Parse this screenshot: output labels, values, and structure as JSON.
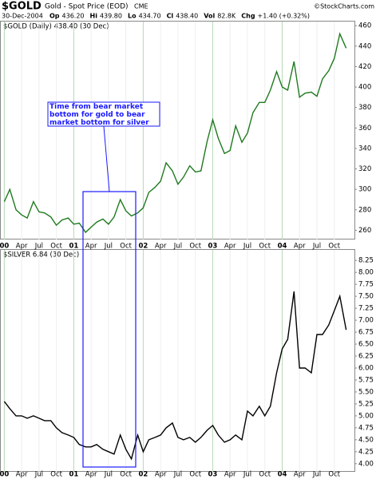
{
  "header": {
    "symbol": "$GOLD",
    "name": "Gold - Spot Price (EOD)",
    "exchange": "CME",
    "copyright": "©StockCharts.com",
    "date": "30-Dec-2004",
    "stats": [
      [
        "Op",
        "436.20"
      ],
      [
        "Hi",
        "439.80"
      ],
      [
        "Lo",
        "434.70"
      ],
      [
        "Cl",
        "438.40"
      ],
      [
        "Vol",
        "82.8K"
      ],
      [
        "Chg",
        "+1.40 (+0.32%)"
      ]
    ]
  },
  "annotation": "Time from bear market bottom for gold to bear market bottom for silver",
  "chart_data": [
    {
      "type": "line",
      "label": "$GOLD (Daily) 438.40 (30 Dec)",
      "x": [
        2000.0,
        2000.08,
        2000.17,
        2000.25,
        2000.33,
        2000.42,
        2000.5,
        2000.58,
        2000.67,
        2000.75,
        2000.83,
        2000.92,
        2001.0,
        2001.08,
        2001.17,
        2001.25,
        2001.33,
        2001.42,
        2001.5,
        2001.58,
        2001.67,
        2001.75,
        2001.83,
        2001.92,
        2002.0,
        2002.08,
        2002.17,
        2002.25,
        2002.33,
        2002.42,
        2002.5,
        2002.58,
        2002.67,
        2002.75,
        2002.83,
        2002.92,
        2003.0,
        2003.08,
        2003.17,
        2003.25,
        2003.33,
        2003.42,
        2003.5,
        2003.58,
        2003.67,
        2003.75,
        2003.83,
        2003.92,
        2004.0,
        2004.08,
        2004.17,
        2004.25,
        2004.33,
        2004.42,
        2004.5,
        2004.58,
        2004.67,
        2004.75,
        2004.83,
        2004.92
      ],
      "series": [
        {
          "name": "$GOLD",
          "color": "#1f7a1f",
          "values": [
            288,
            300,
            280,
            275,
            272,
            288,
            278,
            277,
            273,
            265,
            270,
            272,
            266,
            267,
            258,
            263,
            268,
            271,
            266,
            273,
            290,
            279,
            274,
            277,
            282,
            297,
            302,
            308,
            326,
            318,
            305,
            312,
            323,
            317,
            318,
            347,
            368,
            350,
            335,
            338,
            362,
            346,
            355,
            375,
            385,
            385,
            397,
            415,
            400,
            397,
            425,
            390,
            394,
            395,
            391,
            408,
            416,
            428,
            452,
            438
          ]
        }
      ],
      "xlim": [
        1999.95,
        2005.04
      ],
      "ylim": [
        251,
        464
      ],
      "xticks": [
        {
          "value": 2000,
          "label": "00"
        },
        {
          "value": 2000.25,
          "label": "Apr"
        },
        {
          "value": 2000.5,
          "label": "Jul"
        },
        {
          "value": 2000.75,
          "label": "Oct"
        },
        {
          "value": 2001,
          "label": "01"
        },
        {
          "value": 2001.25,
          "label": "Apr"
        },
        {
          "value": 2001.5,
          "label": "Jul"
        },
        {
          "value": 2001.75,
          "label": "Oct"
        },
        {
          "value": 2002,
          "label": "02"
        },
        {
          "value": 2002.25,
          "label": "Apr"
        },
        {
          "value": 2002.5,
          "label": "Jul"
        },
        {
          "value": 2002.75,
          "label": "Oct"
        },
        {
          "value": 2003,
          "label": "03"
        },
        {
          "value": 2003.25,
          "label": "Apr"
        },
        {
          "value": 2003.5,
          "label": "Jul"
        },
        {
          "value": 2003.75,
          "label": "Oct"
        },
        {
          "value": 2004,
          "label": "04"
        },
        {
          "value": 2004.25,
          "label": "Apr"
        },
        {
          "value": 2004.5,
          "label": "Jul"
        },
        {
          "value": 2004.75,
          "label": "Oct"
        }
      ],
      "yticks": [
        260,
        280,
        300,
        320,
        340,
        360,
        380,
        400,
        420,
        440,
        460
      ]
    },
    {
      "type": "line",
      "label": "$SILVER 6.84 (30 Dec)",
      "x": [
        2000.0,
        2000.08,
        2000.17,
        2000.25,
        2000.33,
        2000.42,
        2000.5,
        2000.58,
        2000.67,
        2000.75,
        2000.83,
        2000.92,
        2001.0,
        2001.08,
        2001.17,
        2001.25,
        2001.33,
        2001.42,
        2001.5,
        2001.58,
        2001.67,
        2001.75,
        2001.83,
        2001.92,
        2002.0,
        2002.08,
        2002.17,
        2002.25,
        2002.33,
        2002.42,
        2002.5,
        2002.58,
        2002.67,
        2002.75,
        2002.83,
        2002.92,
        2003.0,
        2003.08,
        2003.17,
        2003.25,
        2003.33,
        2003.42,
        2003.5,
        2003.58,
        2003.67,
        2003.75,
        2003.83,
        2003.92,
        2004.0,
        2004.08,
        2004.17,
        2004.25,
        2004.33,
        2004.42,
        2004.5,
        2004.58,
        2004.67,
        2004.75,
        2004.83,
        2004.92
      ],
      "series": [
        {
          "name": "$SILVER",
          "color": "#000000",
          "values": [
            5.3,
            5.15,
            5.0,
            5.0,
            4.95,
            5.0,
            4.95,
            4.9,
            4.9,
            4.75,
            4.65,
            4.6,
            4.55,
            4.4,
            4.35,
            4.35,
            4.4,
            4.3,
            4.25,
            4.2,
            4.6,
            4.3,
            4.1,
            4.6,
            4.25,
            4.5,
            4.55,
            4.6,
            4.75,
            4.85,
            4.55,
            4.5,
            4.55,
            4.45,
            4.55,
            4.7,
            4.8,
            4.6,
            4.45,
            4.5,
            4.6,
            4.5,
            5.1,
            5.0,
            5.2,
            5.0,
            5.2,
            5.9,
            6.4,
            6.6,
            7.6,
            6.0,
            6.0,
            5.9,
            6.7,
            6.7,
            6.9,
            7.2,
            7.5,
            6.8
          ]
        }
      ],
      "xlim": [
        1999.95,
        2005.04
      ],
      "ylim": [
        3.83,
        8.47
      ],
      "xticks": [
        {
          "value": 2000,
          "label": "00"
        },
        {
          "value": 2000.25,
          "label": "Apr"
        },
        {
          "value": 2000.5,
          "label": "Jul"
        },
        {
          "value": 2000.75,
          "label": "Oct"
        },
        {
          "value": 2001,
          "label": "01"
        },
        {
          "value": 2001.25,
          "label": "Apr"
        },
        {
          "value": 2001.5,
          "label": "Jul"
        },
        {
          "value": 2001.75,
          "label": "Oct"
        },
        {
          "value": 2002,
          "label": "02"
        },
        {
          "value": 2002.25,
          "label": "Apr"
        },
        {
          "value": 2002.5,
          "label": "Jul"
        },
        {
          "value": 2002.75,
          "label": "Oct"
        },
        {
          "value": 2003,
          "label": "03"
        },
        {
          "value": 2003.25,
          "label": "Apr"
        },
        {
          "value": 2003.5,
          "label": "Jul"
        },
        {
          "value": 2003.75,
          "label": "Oct"
        },
        {
          "value": 2004,
          "label": "04"
        },
        {
          "value": 2004.25,
          "label": "Apr"
        },
        {
          "value": 2004.5,
          "label": "Jul"
        },
        {
          "value": 2004.75,
          "label": "Oct"
        }
      ],
      "yticks": [
        {
          "value": 4,
          "label": "4.00"
        },
        {
          "value": 4.25,
          "label": "4.25"
        },
        {
          "value": 4.5,
          "label": "4.50"
        },
        {
          "value": 4.75,
          "label": "4.75"
        },
        {
          "value": 5,
          "label": "5.00"
        },
        {
          "value": 5.25,
          "label": "5.25"
        },
        {
          "value": 5.5,
          "label": "5.50"
        },
        {
          "value": 5.75,
          "label": "5.75"
        },
        {
          "value": 6,
          "label": "6.00"
        },
        {
          "value": 6.25,
          "label": "6.25"
        },
        {
          "value": 6.5,
          "label": "6.50"
        },
        {
          "value": 6.75,
          "label": "6.75"
        },
        {
          "value": 7,
          "label": "7.00"
        },
        {
          "value": 7.25,
          "label": "7.25"
        },
        {
          "value": 7.5,
          "label": "7.50"
        },
        {
          "value": 7.75,
          "label": "7.75"
        },
        {
          "value": 8,
          "label": "8.00"
        },
        {
          "value": 8.25,
          "label": "8.25"
        }
      ]
    }
  ]
}
